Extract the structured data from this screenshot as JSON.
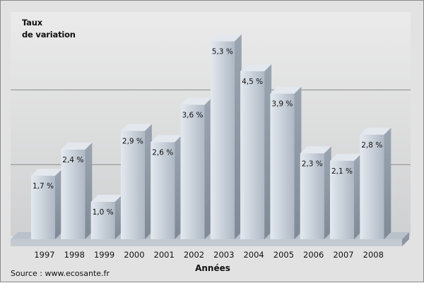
{
  "chart_data": {
    "type": "bar",
    "title": "",
    "ylabel": [
      "Taux",
      "de variation"
    ],
    "xlabel": "Années",
    "source": "Source : www.ecosante.fr",
    "categories": [
      "1997",
      "1998",
      "1999",
      "2000",
      "2001",
      "2002",
      "2003",
      "2004",
      "2005",
      "2006",
      "2007",
      "2008"
    ],
    "values": [
      1.7,
      2.4,
      1.0,
      2.9,
      2.6,
      3.6,
      5.3,
      4.5,
      3.9,
      2.3,
      2.1,
      2.8
    ],
    "data_labels": [
      "1,7 %",
      "2,4 %",
      "1,0 %",
      "2,9 %",
      "2,6 %",
      "3,6 %",
      "5,3 %",
      "4,5 %",
      "3,9 %",
      "2,3 %",
      "2,1 %",
      "2,8 %"
    ],
    "ylim": [
      0,
      6
    ],
    "grid": true,
    "colors": {
      "bar_front": "#c9d2dc",
      "bar_side": "#8f9aa6",
      "bar_top": "#e3e8ee",
      "grid": "#8a8a8a"
    }
  }
}
